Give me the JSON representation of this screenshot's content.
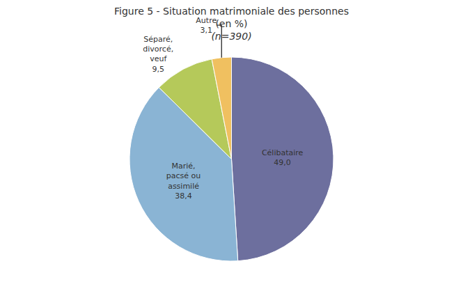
{
  "chart_data": {
    "type": "pie",
    "title": "Figure 5 - Situation matrimoniale des personnes",
    "subtitle": [
      "(en %)",
      "(n=390)"
    ],
    "categories": [
      "Célibataire",
      "Marié,\npacsé ou\nassimilé",
      "Séparé,\ndivorcé,\nveuf",
      "Autre"
    ],
    "values": [
      49.0,
      38.4,
      9.5,
      3.1
    ],
    "value_labels": [
      "49,0",
      "38,4",
      "9,5",
      "3,1"
    ],
    "colors": [
      "#6d6f9e",
      "#8ab4d4",
      "#b5c95a",
      "#f0c060"
    ],
    "data_labels": true
  }
}
